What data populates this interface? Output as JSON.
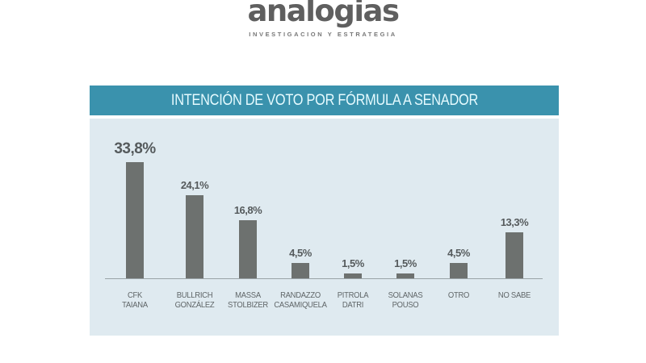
{
  "logo": {
    "name": "analogias",
    "tagline": "INVESTIGACION Y ESTRATEGIA"
  },
  "colors": {
    "header": "#3a92ad",
    "panel": "#dfeaf0",
    "bar": "#6d716f",
    "text": "#555a5c"
  },
  "chart": {
    "title": "INTENCIÓN DE VOTO POR FÓRMULA A SENADOR",
    "bars": [
      {
        "line1": "CFK",
        "line2": "TAIANA",
        "label": "33,8%"
      },
      {
        "line1": "BULLRICH",
        "line2": "GONZÁLEZ",
        "label": "24,1%"
      },
      {
        "line1": "MASSA",
        "line2": "STOLBIZER",
        "label": "16,8%"
      },
      {
        "line1": "RANDAZZO",
        "line2": "CASAMIQUELA",
        "label": "4,5%"
      },
      {
        "line1": "PITROLA",
        "line2": "DATRI",
        "label": "1,5%"
      },
      {
        "line1": "SOLANAS",
        "line2": "POUSO",
        "label": "1,5%"
      },
      {
        "line1": "OTRO",
        "line2": "",
        "label": "4,5%"
      },
      {
        "line1": "NO SABE",
        "line2": "",
        "label": "13,3%"
      }
    ]
  },
  "chart_data": {
    "type": "bar",
    "title": "INTENCIÓN DE VOTO POR FÓRMULA A SENADOR",
    "categories": [
      "CFK TAIANA",
      "BULLRICH GONZÁLEZ",
      "MASSA STOLBIZER",
      "RANDAZZO CASAMIQUELA",
      "PITROLA DATRI",
      "SOLANAS POUSO",
      "OTRO",
      "NO SABE"
    ],
    "values": [
      33.8,
      24.1,
      16.8,
      4.5,
      1.5,
      1.5,
      4.5,
      13.3
    ],
    "unit": "%",
    "xlabel": "",
    "ylabel": "",
    "ylim": [
      0,
      35
    ],
    "grid": false,
    "legend": null,
    "data_labels": true
  }
}
